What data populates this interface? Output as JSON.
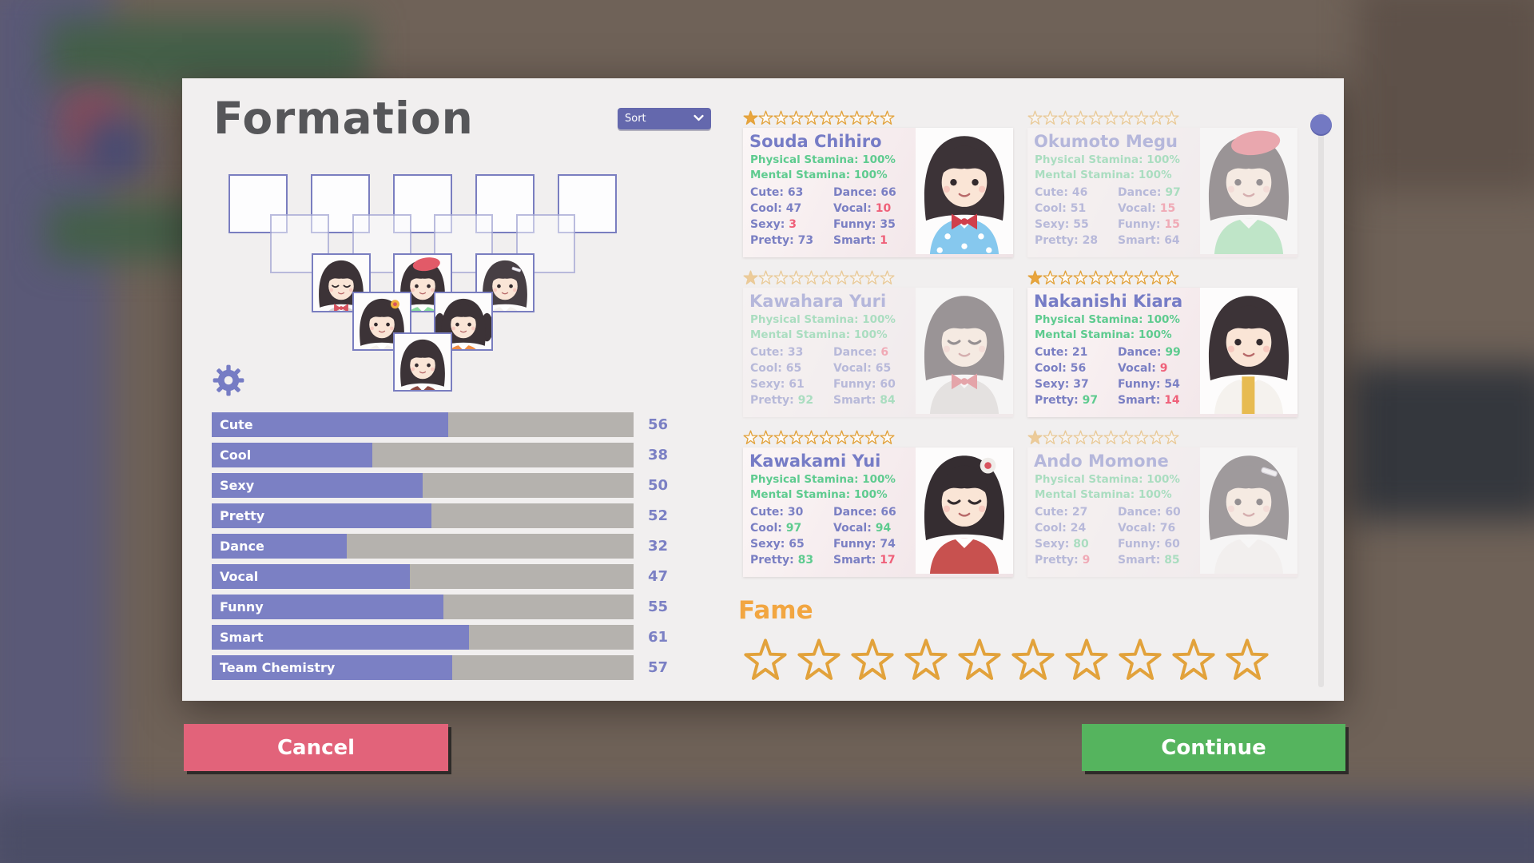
{
  "title": "Formation",
  "sort_dropdown": {
    "label": "Sort"
  },
  "team_stats": [
    {
      "label": "Cute",
      "value": 56
    },
    {
      "label": "Cool",
      "value": 38
    },
    {
      "label": "Sexy",
      "value": 50
    },
    {
      "label": "Pretty",
      "value": 52
    },
    {
      "label": "Dance",
      "value": 32
    },
    {
      "label": "Vocal",
      "value": 47
    },
    {
      "label": "Funny",
      "value": 55
    },
    {
      "label": "Smart",
      "value": 61
    },
    {
      "label": "Team Chemistry",
      "value": 57
    }
  ],
  "stats_max": 100,
  "roster": [
    {
      "name": "Souda Chihiro",
      "stars_filled": 1,
      "stars_total": 10,
      "faded": false,
      "avatar": "chihiro",
      "stamina": [
        {
          "label": "Physical Stamina:",
          "value": "100%"
        },
        {
          "label": "Mental Stamina:",
          "value": "100%"
        }
      ],
      "stats": [
        {
          "label": "Cute:",
          "value": 63
        },
        {
          "label": "Dance:",
          "value": 66
        },
        {
          "label": "Cool:",
          "value": 47
        },
        {
          "label": "Vocal:",
          "value": 10
        },
        {
          "label": "Sexy:",
          "value": 3
        },
        {
          "label": "Funny:",
          "value": 35
        },
        {
          "label": "Pretty:",
          "value": 73
        },
        {
          "label": "Smart:",
          "value": 1
        }
      ]
    },
    {
      "name": "Okumoto Megu",
      "stars_filled": 0,
      "stars_total": 10,
      "faded": true,
      "avatar": "megu",
      "stamina": [
        {
          "label": "Physical Stamina:",
          "value": "100%"
        },
        {
          "label": "Mental Stamina:",
          "value": "100%"
        }
      ],
      "stats": [
        {
          "label": "Cute:",
          "value": 46
        },
        {
          "label": "Dance:",
          "value": 97
        },
        {
          "label": "Cool:",
          "value": 51
        },
        {
          "label": "Vocal:",
          "value": 15
        },
        {
          "label": "Sexy:",
          "value": 55
        },
        {
          "label": "Funny:",
          "value": 15
        },
        {
          "label": "Pretty:",
          "value": 28
        },
        {
          "label": "Smart:",
          "value": 64
        }
      ]
    },
    {
      "name": "Kawahara Yuri",
      "stars_filled": 1,
      "stars_total": 10,
      "faded": true,
      "avatar": "yuri",
      "stamina": [
        {
          "label": "Physical Stamina:",
          "value": "100%"
        },
        {
          "label": "Mental Stamina:",
          "value": "100%"
        }
      ],
      "stats": [
        {
          "label": "Cute:",
          "value": 33
        },
        {
          "label": "Dance:",
          "value": 6
        },
        {
          "label": "Cool:",
          "value": 65
        },
        {
          "label": "Vocal:",
          "value": 65
        },
        {
          "label": "Sexy:",
          "value": 61
        },
        {
          "label": "Funny:",
          "value": 60
        },
        {
          "label": "Pretty:",
          "value": 92
        },
        {
          "label": "Smart:",
          "value": 84
        }
      ]
    },
    {
      "name": "Nakanishi Kiara",
      "stars_filled": 1,
      "stars_total": 10,
      "faded": false,
      "avatar": "kiara",
      "stamina": [
        {
          "label": "Physical Stamina:",
          "value": "100%"
        },
        {
          "label": "Mental Stamina:",
          "value": "100%"
        }
      ],
      "stats": [
        {
          "label": "Cute:",
          "value": 21
        },
        {
          "label": "Dance:",
          "value": 99
        },
        {
          "label": "Cool:",
          "value": 56
        },
        {
          "label": "Vocal:",
          "value": 9
        },
        {
          "label": "Sexy:",
          "value": 37
        },
        {
          "label": "Funny:",
          "value": 54
        },
        {
          "label": "Pretty:",
          "value": 97
        },
        {
          "label": "Smart:",
          "value": 14
        }
      ]
    },
    {
      "name": "Kawakami Yui",
      "stars_filled": 0,
      "stars_total": 10,
      "faded": false,
      "avatar": "yui",
      "stamina": [
        {
          "label": "Physical Stamina:",
          "value": "100%"
        },
        {
          "label": "Mental Stamina:",
          "value": "100%"
        }
      ],
      "stats": [
        {
          "label": "Cute:",
          "value": 30
        },
        {
          "label": "Dance:",
          "value": 66
        },
        {
          "label": "Cool:",
          "value": 97
        },
        {
          "label": "Vocal:",
          "value": 94
        },
        {
          "label": "Sexy:",
          "value": 65
        },
        {
          "label": "Funny:",
          "value": 74
        },
        {
          "label": "Pretty:",
          "value": 83
        },
        {
          "label": "Smart:",
          "value": 17
        }
      ]
    },
    {
      "name": "Ando Momone",
      "stars_filled": 1,
      "stars_total": 10,
      "faded": true,
      "avatar": "momone",
      "stamina": [
        {
          "label": "Physical Stamina:",
          "value": "100%"
        },
        {
          "label": "Mental Stamina:",
          "value": "100%"
        }
      ],
      "stats": [
        {
          "label": "Cute:",
          "value": 27
        },
        {
          "label": "Dance:",
          "value": 60
        },
        {
          "label": "Cool:",
          "value": 24
        },
        {
          "label": "Vocal:",
          "value": 76
        },
        {
          "label": "Sexy:",
          "value": 80
        },
        {
          "label": "Funny:",
          "value": 60
        },
        {
          "label": "Pretty:",
          "value": 9
        },
        {
          "label": "Smart:",
          "value": 85
        }
      ]
    }
  ],
  "formation": {
    "back_row_slots": 5,
    "mid_row_slots": 4,
    "members": [
      "yuri",
      "megu",
      "momone",
      "flowergirl",
      "twintailgirl",
      "longhairgirl"
    ]
  },
  "avatars": {
    "chihiro": {
      "hair": "#3c3337",
      "skin": "#fae5d6",
      "outfit": "#86c8ee",
      "dots": true,
      "acc": "bow",
      "accColor": "#cf3f4c",
      "eyes": "open"
    },
    "megu": {
      "hair": "#3c3337",
      "skin": "#fae5d6",
      "outfit": "#8adb9f",
      "dots": false,
      "acc": "beret",
      "accColor": "#e25a68",
      "eyes": "open"
    },
    "yuri": {
      "hair": "#3c3337",
      "skin": "#fae5d6",
      "outfit": "#d8d3d0",
      "dots": false,
      "acc": "bow",
      "accColor": "#d8535f",
      "eyes": "closed"
    },
    "kiara": {
      "hair": "#3c3337",
      "skin": "#fae5d6",
      "outfit": "#f5f2ee",
      "dots": false,
      "acc": "scarf",
      "accColor": "#e7bb51",
      "eyes": "open"
    },
    "yui": {
      "hair": "#352d31",
      "skin": "#fae5d6",
      "outfit": "#c8514f",
      "dots": false,
      "acc": "flower",
      "accColor": "#efece9",
      "eyes": "closed"
    },
    "momone": {
      "hair": "#473f44",
      "skin": "#fae5d6",
      "outfit": "#f4f1ee",
      "dots": false,
      "acc": "clip",
      "accColor": "#efeef2",
      "eyes": "open"
    },
    "flowergirl": {
      "hair": "#3c3337",
      "skin": "#fae5d6",
      "outfit": "#f3efec",
      "dots": false,
      "acc": "flower",
      "accColor": "#f0b03c",
      "eyes": "open"
    },
    "twintailgirl": {
      "hair": "#3c3337",
      "skin": "#fae5d6",
      "outfit": "#ef8d45",
      "dots": false,
      "acc": "twintails",
      "accColor": "#3c3337",
      "eyes": "open"
    },
    "longhairgirl": {
      "hair": "#3c3337",
      "skin": "#fae5d6",
      "outfit": "#8e4a42",
      "dots": false,
      "acc": "none",
      "accColor": "#ffffff",
      "eyes": "open"
    }
  },
  "fame": {
    "label": "Fame",
    "stars_total": 10,
    "stars_filled": 0
  },
  "actions": {
    "cancel": "Cancel",
    "continue": "Continue"
  },
  "colors": {
    "accent_purple": "#7b80c4",
    "bar_track": "#b5b2ae",
    "stat_low_red": "#ef6079",
    "stat_high_green": "#5ecb8f",
    "stamina_green": "#5ecb8f",
    "star_gold": "#eaa53d",
    "star_outline": "#e2a23b",
    "fame_orange": "#f2a641",
    "cancel_red": "#e2637a",
    "continue_green": "#55b45e"
  }
}
